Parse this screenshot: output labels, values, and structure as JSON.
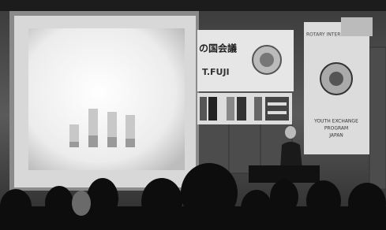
{
  "banner_center": {
    "text_jp": "の国会議",
    "text_en": "T.FUJI"
  },
  "banner_right": {
    "top": "ROTARY INTERNA",
    "lines": [
      "YOUTH EXCHANGE",
      "PROGRAM",
      "JAPAN"
    ]
  }
}
